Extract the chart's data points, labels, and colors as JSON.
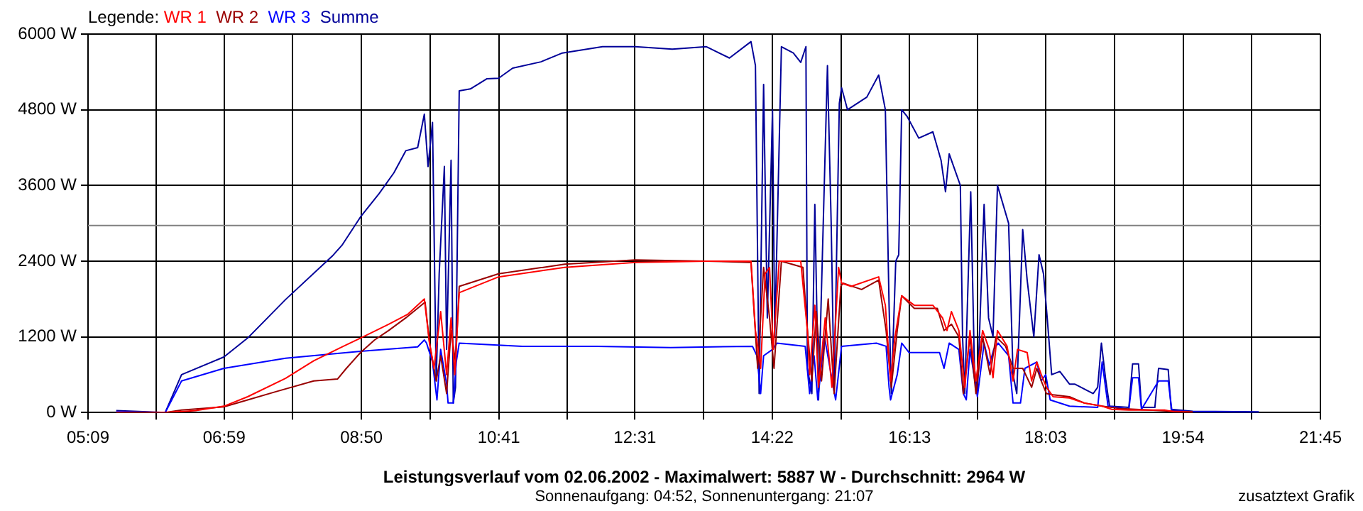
{
  "chart_data": {
    "type": "line",
    "title": "Leistungsverlauf vom 02.06.2002 - Maximalwert: 5887 W - Durchschnitt: 2964 W",
    "subtitle": "Sonnenaufgang: 04:52, Sonnenuntergang: 21:07",
    "annotations": [
      "zusatztext Grafik"
    ],
    "legend_title": "Legende:",
    "legend": "top left",
    "grid": true,
    "xlim": [
      5.15,
      21.75
    ],
    "xticks": [
      {
        "value": 5.15,
        "label": "05:09"
      },
      {
        "value": 6.0667,
        "label": null
      },
      {
        "value": 6.9833,
        "label": "06:59"
      },
      {
        "value": 7.9083,
        "label": null
      },
      {
        "value": 8.8333,
        "label": "08:50"
      },
      {
        "value": 9.7583,
        "label": null
      },
      {
        "value": 10.6833,
        "label": "10:41"
      },
      {
        "value": 11.6,
        "label": null
      },
      {
        "value": 12.5167,
        "label": "12:31"
      },
      {
        "value": 13.4417,
        "label": null
      },
      {
        "value": 14.3667,
        "label": "14:22"
      },
      {
        "value": 15.2917,
        "label": null
      },
      {
        "value": 16.2167,
        "label": "16:13"
      },
      {
        "value": 17.1333,
        "label": null
      },
      {
        "value": 18.05,
        "label": "18:03"
      },
      {
        "value": 18.975,
        "label": null
      },
      {
        "value": 19.9,
        "label": "19:54"
      },
      {
        "value": 20.825,
        "label": null
      },
      {
        "value": 21.75,
        "label": "21:45"
      }
    ],
    "ylim": [
      0,
      6000
    ],
    "yticks": [
      {
        "value": 0,
        "label": "0 W"
      },
      {
        "value": 1200,
        "label": "1200 W"
      },
      {
        "value": 2400,
        "label": "2400 W"
      },
      {
        "value": 3600,
        "label": "3600 W"
      },
      {
        "value": 4800,
        "label": "4800 W"
      },
      {
        "value": 6000,
        "label": "6000 W"
      }
    ],
    "ref_lines": [
      {
        "axis": "y",
        "value": 2964,
        "color": "#808080"
      }
    ],
    "series": [
      {
        "name": "WR 1",
        "color": "#ff0000",
        "x": [
          5.53,
          6.19,
          6.6,
          6.98,
          7.3,
          7.81,
          8.19,
          8.57,
          8.82,
          9.2,
          9.46,
          9.68,
          9.75,
          9.81,
          9.9,
          9.98,
          10.04,
          10.09,
          10.15,
          10.68,
          11.57,
          12.52,
          13.48,
          14.08,
          14.14,
          14.21,
          14.27,
          14.33,
          14.38,
          14.46,
          14.75,
          14.84,
          14.87,
          14.94,
          14.99,
          15.08,
          15.17,
          15.26,
          15.3,
          15.43,
          15.8,
          15.89,
          15.96,
          16.02,
          16.11,
          16.28,
          16.53,
          16.66,
          16.72,
          16.78,
          16.88,
          16.96,
          17.03,
          17.11,
          17.2,
          17.29,
          17.34,
          17.4,
          17.53,
          17.61,
          17.67,
          17.8,
          17.86,
          17.93,
          17.99,
          18.06,
          18.15,
          18.37,
          18.57,
          18.81,
          18.94,
          19.17,
          19.65,
          19.78,
          20.03
        ],
        "values": [
          0,
          0,
          30,
          100,
          250,
          540,
          820,
          1040,
          1180,
          1400,
          1560,
          1800,
          1100,
          700,
          1600,
          600,
          1500,
          600,
          1900,
          2150,
          2300,
          2380,
          2400,
          2400,
          1300,
          700,
          2200,
          2300,
          1000,
          2400,
          2400,
          1300,
          600,
          1700,
          400,
          1500,
          400,
          2300,
          2050,
          2000,
          2150,
          1700,
          500,
          1200,
          1850,
          1700,
          1700,
          1500,
          1300,
          1600,
          1300,
          400,
          1300,
          500,
          1300,
          1000,
          550,
          1300,
          1050,
          500,
          1000,
          950,
          500,
          800,
          600,
          400,
          250,
          230,
          150,
          100,
          50,
          40,
          40,
          10,
          0
        ]
      },
      {
        "name": "WR 2",
        "color": "#990000",
        "x": [
          5.53,
          6.19,
          6.41,
          6.98,
          7.3,
          7.68,
          8.19,
          8.51,
          8.63,
          8.82,
          9.01,
          9.2,
          9.43,
          9.69,
          9.75,
          9.84,
          9.9,
          9.98,
          10.04,
          10.1,
          10.15,
          10.68,
          11.57,
          12.52,
          13.48,
          14.08,
          14.17,
          14.25,
          14.33,
          14.39,
          14.49,
          14.78,
          14.84,
          14.9,
          14.96,
          15.03,
          15.12,
          15.2,
          15.29,
          15.32,
          15.57,
          15.8,
          15.9,
          15.97,
          16.05,
          16.11,
          16.28,
          16.59,
          16.68,
          16.78,
          16.88,
          16.94,
          17.03,
          17.11,
          17.2,
          17.3,
          17.38,
          17.51,
          17.61,
          17.74,
          17.86,
          17.93,
          17.99,
          18.06,
          18.15,
          18.37,
          18.57,
          18.81,
          19.07,
          19.78,
          20.03
        ],
        "values": [
          0,
          0,
          40,
          90,
          200,
          330,
          500,
          530,
          700,
          950,
          1150,
          1300,
          1500,
          1750,
          1100,
          500,
          900,
          300,
          1300,
          800,
          2000,
          2200,
          2350,
          2420,
          2400,
          2380,
          700,
          2300,
          1500,
          700,
          2400,
          2300,
          1300,
          500,
          1600,
          500,
          1800,
          300,
          2000,
          2050,
          1950,
          2100,
          1300,
          400,
          1300,
          1850,
          1650,
          1650,
          1300,
          1400,
          1200,
          300,
          1200,
          300,
          1200,
          600,
          1200,
          1050,
          700,
          700,
          400,
          700,
          500,
          300,
          280,
          250,
          150,
          100,
          60,
          20,
          10
        ]
      },
      {
        "name": "WR 3",
        "color": "#0000ff",
        "x": [
          5.53,
          6.19,
          6.41,
          6.98,
          7.81,
          8.82,
          9.59,
          9.68,
          9.71,
          9.79,
          9.85,
          9.9,
          9.98,
          10.0,
          10.07,
          10.11,
          10.15,
          11.0,
          12.0,
          13.0,
          14.1,
          14.16,
          14.21,
          14.25,
          14.37,
          14.43,
          14.81,
          14.87,
          14.93,
          14.98,
          15.07,
          15.16,
          15.22,
          15.3,
          15.77,
          15.9,
          15.94,
          15.96,
          16.05,
          16.11,
          16.21,
          16.62,
          16.68,
          16.75,
          16.88,
          16.94,
          16.98,
          17.03,
          17.13,
          17.22,
          17.29,
          17.35,
          17.41,
          17.55,
          17.61,
          17.71,
          17.77,
          17.93,
          17.99,
          18.05,
          18.11,
          18.37,
          18.75,
          18.81,
          18.89,
          19.17,
          19.22,
          19.3,
          19.34,
          19.57,
          19.7,
          19.75,
          20.03,
          20.92
        ],
        "values": [
          10,
          0,
          500,
          700,
          860,
          970,
          1040,
          1150,
          1100,
          800,
          200,
          1000,
          450,
          150,
          150,
          800,
          1100,
          1050,
          1050,
          1030,
          1050,
          900,
          300,
          900,
          1000,
          1100,
          1050,
          300,
          900,
          200,
          1200,
          600,
          200,
          1050,
          1100,
          1050,
          400,
          200,
          600,
          1100,
          950,
          950,
          700,
          1100,
          1000,
          300,
          200,
          1000,
          250,
          1100,
          750,
          1000,
          1100,
          900,
          150,
          150,
          700,
          800,
          500,
          600,
          200,
          100,
          80,
          800,
          100,
          50,
          550,
          550,
          50,
          500,
          500,
          30,
          10,
          0
        ]
      },
      {
        "name": "Summe",
        "color": "#000099",
        "x": [
          5.53,
          6.19,
          6.41,
          6.98,
          7.3,
          7.81,
          8.44,
          8.57,
          8.82,
          9.07,
          9.27,
          9.43,
          9.59,
          9.68,
          9.73,
          9.79,
          9.84,
          9.88,
          9.95,
          9.98,
          10.04,
          10.07,
          10.1,
          10.15,
          10.3,
          10.52,
          10.68,
          10.87,
          11.25,
          11.54,
          12.08,
          12.52,
          13.02,
          13.48,
          13.79,
          14.08,
          14.14,
          14.19,
          14.25,
          14.3,
          14.37,
          14.4,
          14.49,
          14.65,
          14.75,
          14.82,
          14.84,
          14.9,
          14.94,
          14.99,
          15.11,
          15.16,
          15.2,
          15.27,
          15.3,
          15.38,
          15.64,
          15.8,
          15.89,
          15.94,
          15.97,
          16.03,
          16.07,
          16.11,
          16.18,
          16.34,
          16.53,
          16.64,
          16.7,
          16.75,
          16.81,
          16.9,
          16.93,
          16.96,
          17.04,
          17.09,
          17.13,
          17.22,
          17.28,
          17.34,
          17.4,
          17.55,
          17.61,
          17.66,
          17.74,
          17.8,
          17.89,
          17.96,
          18.02,
          18.07,
          18.13,
          18.24,
          18.37,
          18.44,
          18.69,
          18.75,
          18.8,
          18.86,
          18.91,
          19.17,
          19.22,
          19.3,
          19.34,
          19.52,
          19.57,
          19.7,
          19.74,
          20.03,
          20.92
        ],
        "values": [
          30,
          0,
          600,
          880,
          1180,
          1790,
          2480,
          2650,
          3100,
          3470,
          3800,
          4150,
          4200,
          4730,
          3900,
          4600,
          500,
          2200,
          3900,
          1000,
          4000,
          150,
          400,
          5100,
          5130,
          5290,
          5300,
          5460,
          5560,
          5700,
          5800,
          5800,
          5760,
          5800,
          5620,
          5880,
          5500,
          300,
          5200,
          1500,
          4800,
          1200,
          5800,
          5700,
          5550,
          5800,
          700,
          300,
          3300,
          200,
          5500,
          3000,
          300,
          4900,
          5150,
          4800,
          5000,
          5350,
          4800,
          1700,
          300,
          2400,
          2500,
          4800,
          4700,
          4350,
          4450,
          4000,
          3500,
          4100,
          3900,
          3600,
          1200,
          300,
          3500,
          700,
          300,
          3300,
          1500,
          1200,
          3600,
          3000,
          600,
          300,
          2900,
          2100,
          1200,
          2500,
          2200,
          1500,
          600,
          650,
          450,
          450,
          300,
          400,
          1100,
          500,
          100,
          80,
          770,
          770,
          80,
          80,
          700,
          680,
          50,
          20,
          10
        ]
      }
    ]
  }
}
